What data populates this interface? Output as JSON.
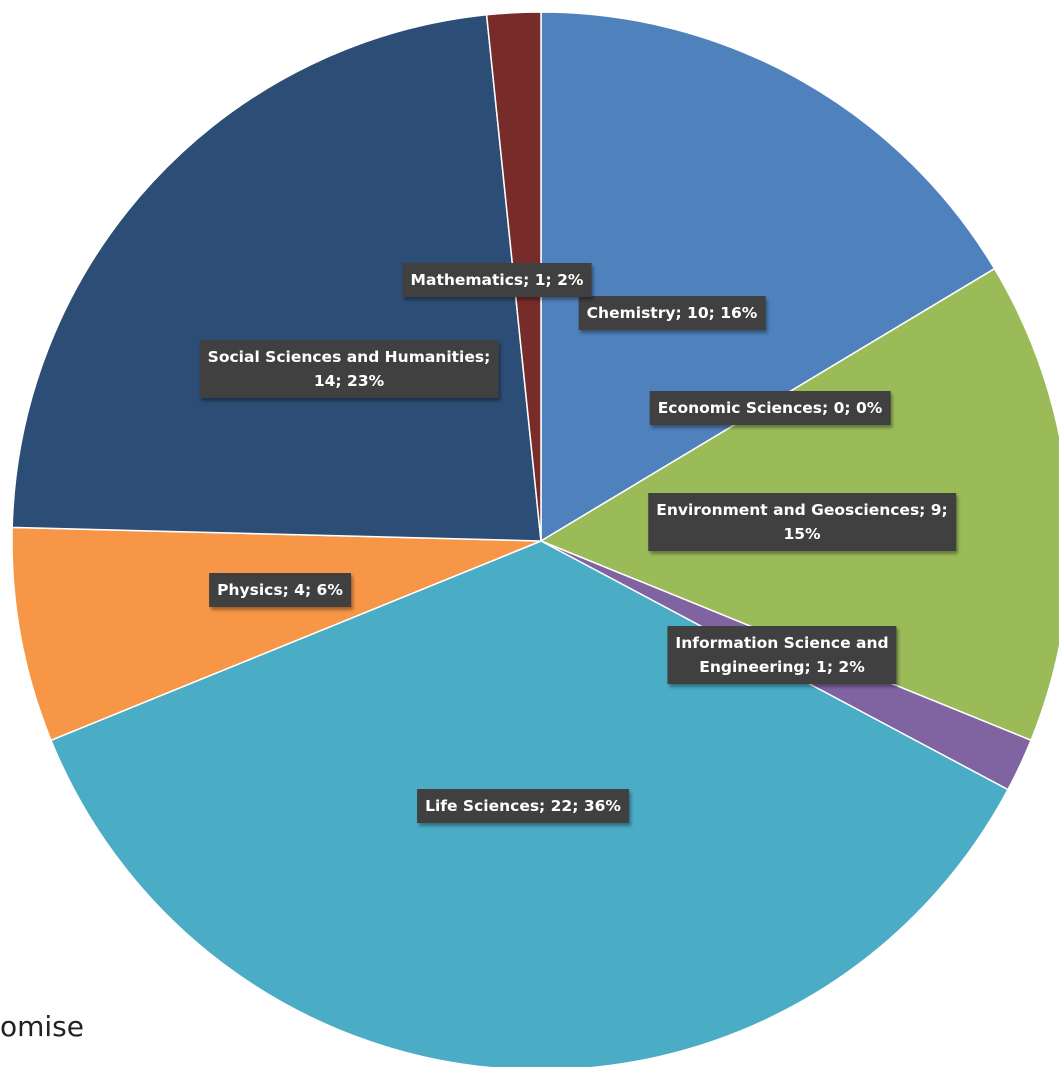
{
  "background_text": "omise",
  "chart_data": {
    "type": "pie",
    "title": "",
    "start_angle_deg": 0,
    "direction": "clockwise",
    "slices": [
      {
        "label": "Chemistry",
        "value": 10,
        "percent": "16%",
        "color": "#4F81BD",
        "label_lines": [
          "Chemistry; 10; 16%"
        ]
      },
      {
        "label": "Economic Sciences",
        "value": 0,
        "percent": "0%",
        "color": "#C0504D",
        "label_lines": [
          "Economic Sciences; 0; 0%"
        ]
      },
      {
        "label": "Environment and Geosciences",
        "value": 9,
        "percent": "15%",
        "color": "#9BBB59",
        "label_lines": [
          "Environment and Geosciences; 9;",
          "15%"
        ]
      },
      {
        "label": "Information Science and Engineering",
        "value": 1,
        "percent": "2%",
        "color": "#8064A2",
        "label_lines": [
          "Information Science and",
          "Engineering; 1; 2%"
        ]
      },
      {
        "label": "Life Sciences",
        "value": 22,
        "percent": "36%",
        "color": "#4BACC6",
        "label_lines": [
          "Life Sciences; 22; 36%"
        ]
      },
      {
        "label": "Physics",
        "value": 4,
        "percent": "6%",
        "color": "#F79646",
        "label_lines": [
          "Physics; 4; 6%"
        ]
      },
      {
        "label": "Social Sciences and Humanities",
        "value": 14,
        "percent": "23%",
        "color": "#2C4D75",
        "label_lines": [
          "Social Sciences and Humanities;",
          "14; 23%"
        ]
      },
      {
        "label": "Mathematics",
        "value": 1,
        "percent": "2%",
        "color": "#772C2A",
        "label_lines": [
          "Mathematics; 1; 2%"
        ]
      }
    ]
  }
}
